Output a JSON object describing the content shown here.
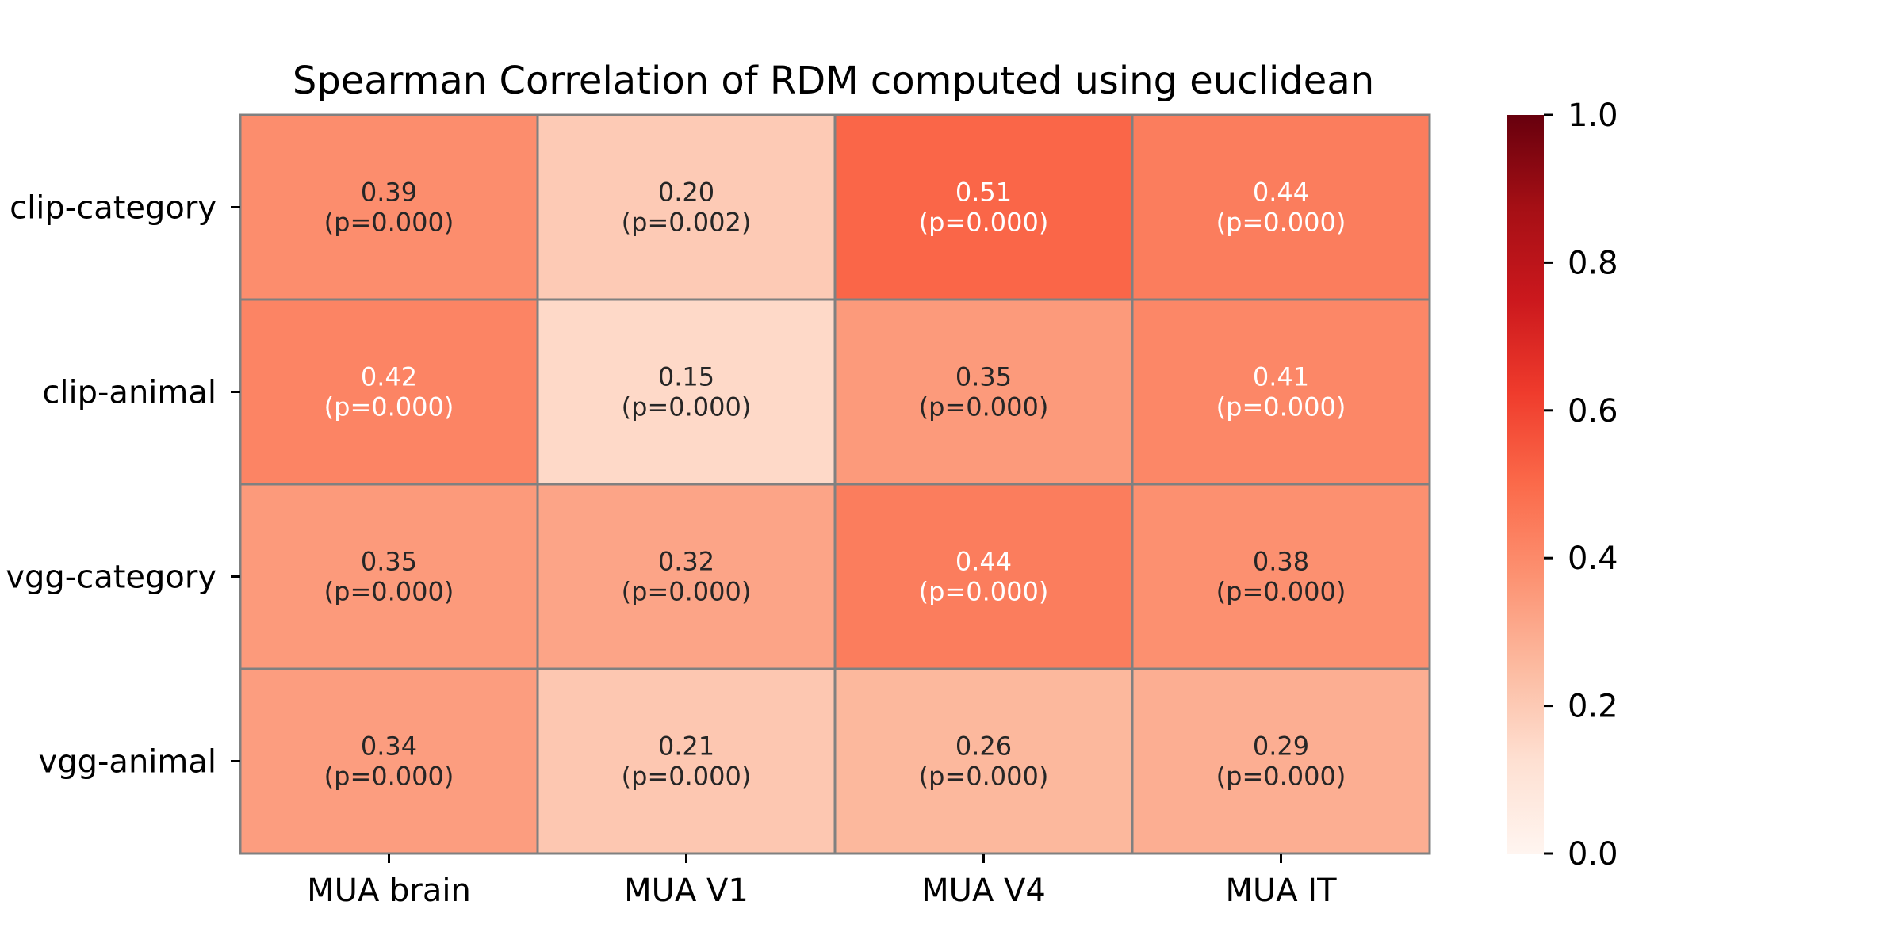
{
  "chart_data": {
    "type": "heatmap",
    "title": "Spearman Correlation of RDM computed using euclidean",
    "xlabel": "",
    "ylabel": "",
    "x_categories": [
      "MUA brain",
      "MUA V1",
      "MUA V4",
      "MUA IT"
    ],
    "y_categories": [
      "clip-category",
      "clip-animal",
      "vgg-category",
      "vgg-animal"
    ],
    "values": [
      [
        0.39,
        0.2,
        0.51,
        0.44
      ],
      [
        0.42,
        0.15,
        0.35,
        0.41
      ],
      [
        0.35,
        0.32,
        0.44,
        0.38
      ],
      [
        0.34,
        0.21,
        0.26,
        0.29
      ]
    ],
    "annotations": [
      [
        [
          "0.39",
          "(p=0.000)"
        ],
        [
          "0.20",
          "(p=0.002)"
        ],
        [
          "0.51",
          "(p=0.000)"
        ],
        [
          "0.44",
          "(p=0.000)"
        ]
      ],
      [
        [
          "0.42",
          "(p=0.000)"
        ],
        [
          "0.15",
          "(p=0.000)"
        ],
        [
          "0.35",
          "(p=0.000)"
        ],
        [
          "0.41",
          "(p=0.000)"
        ]
      ],
      [
        [
          "0.35",
          "(p=0.000)"
        ],
        [
          "0.32",
          "(p=0.000)"
        ],
        [
          "0.44",
          "(p=0.000)"
        ],
        [
          "0.38",
          "(p=0.000)"
        ]
      ],
      [
        [
          "0.34",
          "(p=0.000)"
        ],
        [
          "0.21",
          "(p=0.000)"
        ],
        [
          "0.26",
          "(p=0.000)"
        ],
        [
          "0.29",
          "(p=0.000)"
        ]
      ]
    ],
    "colormap": "Reds",
    "colorbar": {
      "range": [
        0.0,
        1.0
      ],
      "ticks": [
        0.0,
        0.2,
        0.4,
        0.6,
        0.8,
        1.0
      ],
      "tick_labels": [
        "0.0",
        "0.2",
        "0.4",
        "0.6",
        "0.8",
        "1.0"
      ]
    },
    "colors": {
      "cell_border": "#808080",
      "text_dark": "#262626",
      "text_light": "#ffffff"
    },
    "grid": true
  }
}
